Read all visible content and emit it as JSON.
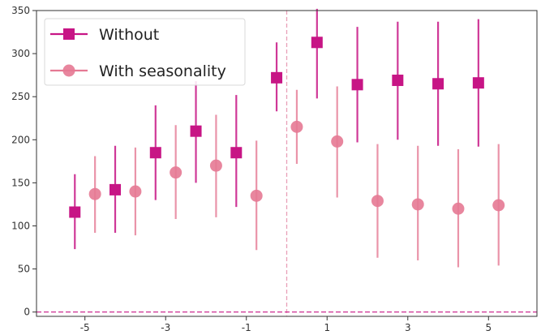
{
  "chart_data": {
    "type": "scatter",
    "title": "",
    "xlabel": "",
    "ylabel": "",
    "xlim": [
      -6.2,
      6.2
    ],
    "ylim": [
      -5,
      350
    ],
    "xticks": [
      -5,
      -3,
      -1,
      1,
      3,
      5
    ],
    "xtick_labels": [
      "-5",
      "-3",
      "-1",
      "1",
      "3",
      "5"
    ],
    "yticks": [
      0,
      50,
      100,
      150,
      200,
      250,
      300,
      350
    ],
    "ytick_labels": [
      "0",
      "50",
      "100",
      "150",
      "200",
      "250",
      "300",
      "350"
    ],
    "grid": false,
    "legend_position": "top-left",
    "reference_lines": {
      "vertical_x": 0,
      "horizontal_y": 0
    },
    "series": [
      {
        "name": "Without",
        "marker": "square",
        "color": "#c71585",
        "x": [
          -5.25,
          -4.25,
          -3.25,
          -2.25,
          -1.25,
          -0.25,
          0.75,
          1.75,
          2.75,
          3.75,
          4.75
        ],
        "y": [
          116,
          142,
          185,
          210,
          185,
          272,
          313,
          264,
          269,
          265,
          266
        ],
        "y_low": [
          73,
          92,
          130,
          150,
          122,
          233,
          248,
          197,
          200,
          193,
          192
        ],
        "y_high": [
          160,
          193,
          240,
          268,
          252,
          313,
          352,
          331,
          337,
          337,
          340
        ]
      },
      {
        "name": "With seasonality",
        "marker": "circle",
        "color": "#e57994",
        "x": [
          -4.75,
          -3.75,
          -2.75,
          -1.75,
          -0.75,
          0.25,
          1.25,
          2.25,
          3.25,
          4.25,
          5.25
        ],
        "y": [
          137,
          140,
          162,
          170,
          135,
          215,
          198,
          129,
          125,
          120,
          124
        ],
        "y_low": [
          92,
          89,
          108,
          110,
          72,
          172,
          133,
          63,
          60,
          52,
          54
        ],
        "y_high": [
          181,
          191,
          217,
          229,
          199,
          258,
          262,
          195,
          193,
          189,
          195
        ]
      }
    ]
  }
}
